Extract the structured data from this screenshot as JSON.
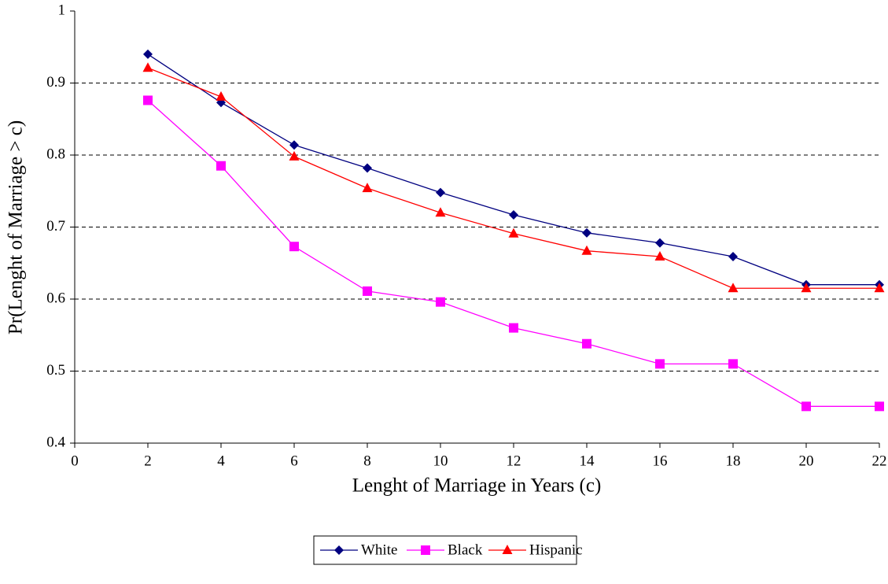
{
  "chart_data": {
    "type": "line",
    "x_label": "Lenght of Marriage in Years (c)",
    "y_label": "Pr(Lenght of Marriage > c)",
    "x": [
      2,
      4,
      6,
      8,
      10,
      12,
      14,
      16,
      18,
      20,
      22
    ],
    "series": [
      {
        "name": "White",
        "color": "#000080",
        "marker": "diamond",
        "values": [
          0.94,
          0.873,
          0.814,
          0.782,
          0.748,
          0.717,
          0.692,
          0.678,
          0.659,
          0.62,
          0.62
        ]
      },
      {
        "name": "Black",
        "color": "#ff00ff",
        "marker": "square",
        "values": [
          0.876,
          0.785,
          0.673,
          0.611,
          0.596,
          0.56,
          0.538,
          0.51,
          0.51,
          0.451,
          0.451
        ]
      },
      {
        "name": "Hispanic",
        "color": "#ff0000",
        "marker": "triangle",
        "values": [
          0.921,
          0.881,
          0.798,
          0.754,
          0.72,
          0.691,
          0.667,
          0.659,
          0.615,
          0.615,
          0.615
        ]
      }
    ],
    "xlim": [
      0,
      22
    ],
    "xticks": [
      0,
      2,
      4,
      6,
      8,
      10,
      12,
      14,
      16,
      18,
      20,
      22
    ],
    "ylim": [
      0.4,
      1
    ],
    "yticks": [
      0.4,
      0.5,
      0.6,
      0.7,
      0.8,
      0.9,
      1
    ],
    "grid": true,
    "legend": "bottom"
  }
}
